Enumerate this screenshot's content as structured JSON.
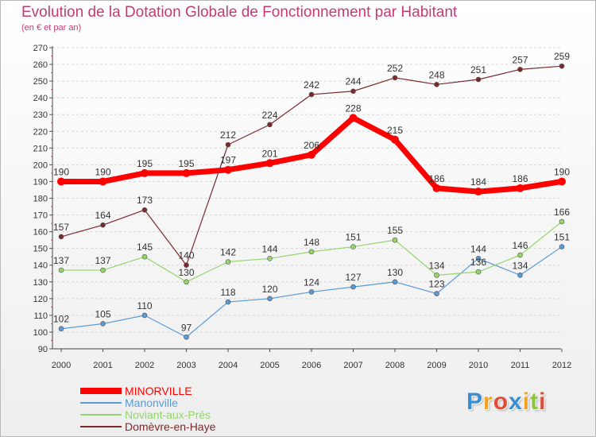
{
  "title": "Evolution de la Dotation Globale de Fonctionnement par Habitant",
  "subtitle": "(en € et par an)",
  "logo": {
    "text": "Proxiti",
    "letters": [
      {
        "ch": "P",
        "color": "#3a8fd4"
      },
      {
        "ch": "r",
        "color": "#f2a227"
      },
      {
        "ch": "o",
        "color": "#e04d3a"
      },
      {
        "ch": "x",
        "color": "#3a8fd4"
      },
      {
        "ch": "i",
        "color": "#f2a227"
      },
      {
        "ch": "t",
        "color": "#8cc43c"
      },
      {
        "ch": "i",
        "color": "#e04d3a"
      }
    ]
  },
  "chart_data": {
    "type": "line",
    "title": "Evolution de la Dotation Globale de Fonctionnement par Habitant",
    "subtitle": "(en € et par an)",
    "xlabel": "",
    "ylabel": "",
    "x": [
      "2000",
      "2001",
      "2002",
      "2003",
      "2004",
      "2005",
      "2006",
      "2007",
      "2008",
      "2009",
      "2010",
      "2011",
      "2012"
    ],
    "ylim": [
      90,
      270
    ],
    "yticks": [
      90,
      100,
      110,
      120,
      130,
      140,
      150,
      160,
      170,
      180,
      190,
      200,
      210,
      220,
      230,
      240,
      250,
      260,
      270
    ],
    "grid": "horizontal dashed",
    "legend_position": "bottom-left",
    "series": [
      {
        "name": "MINORVILLE",
        "color": "#ff0000",
        "values": [
          190,
          190,
          195,
          195,
          197,
          201,
          206,
          228,
          215,
          186,
          184,
          186,
          190
        ]
      },
      {
        "name": "Manonville",
        "color": "#5a9ad6",
        "values": [
          102,
          105,
          110,
          97,
          118,
          120,
          124,
          127,
          130,
          123,
          144,
          134,
          151
        ]
      },
      {
        "name": "Noviant-aux-Prés",
        "color": "#94d66a",
        "values": [
          137,
          137,
          145,
          130,
          142,
          144,
          148,
          151,
          155,
          134,
          136,
          146,
          166
        ]
      },
      {
        "name": "Domèvre-en-Haye",
        "color": "#7a2a2a",
        "values": [
          157,
          164,
          173,
          140,
          212,
          224,
          242,
          244,
          252,
          248,
          251,
          257,
          259
        ]
      }
    ]
  }
}
